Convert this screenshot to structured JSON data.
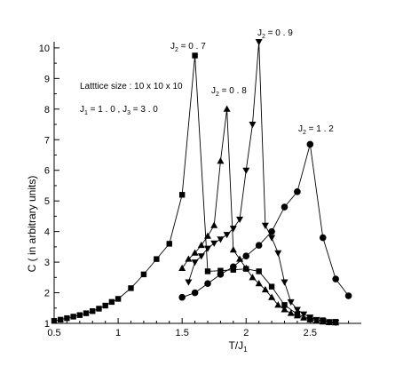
{
  "chart_data": {
    "type": "line",
    "xlabel": "T/J",
    "xlabel_sub": "1",
    "ylabel": "C ( in arbitrary units)",
    "xlim": [
      0.5,
      2.9
    ],
    "ylim": [
      1,
      10.2
    ],
    "xticks": [
      0.5,
      1,
      1.5,
      2,
      2.5
    ],
    "xtick_labels": [
      "0.5",
      "1",
      "1.5",
      "2",
      "2.5"
    ],
    "yticks": [
      1,
      2,
      3,
      4,
      5,
      6,
      7,
      8,
      9,
      10
    ],
    "ytick_labels": [
      "1",
      "2",
      "3",
      "4",
      "5",
      "6",
      "7",
      "8",
      "9",
      "10"
    ],
    "grid": false,
    "annotations": {
      "lattice": "Latttice size : 10 x 10 x 10",
      "couplings": {
        "j1": "J",
        "j1_sub": "1",
        "j1_val": " = 1 . 0 ,  ",
        "j3": "J",
        "j3_sub": "3",
        "j3_val": " = 3 . 0"
      }
    },
    "series": [
      {
        "name_main": "J",
        "name_sub": "2",
        "name_val": " = 0 . 7",
        "marker": "square",
        "x": [
          0.5,
          0.55,
          0.6,
          0.65,
          0.7,
          0.75,
          0.8,
          0.85,
          0.9,
          0.95,
          1.0,
          1.1,
          1.2,
          1.3,
          1.4,
          1.5,
          1.6,
          1.7,
          1.8,
          1.9,
          2.0,
          2.1,
          2.2,
          2.3,
          2.4,
          2.5,
          2.6,
          2.7
        ],
        "y": [
          1.08,
          1.12,
          1.17,
          1.22,
          1.27,
          1.33,
          1.4,
          1.48,
          1.58,
          1.7,
          1.8,
          2.15,
          2.6,
          3.1,
          3.6,
          5.2,
          9.75,
          2.7,
          2.72,
          2.75,
          2.78,
          2.7,
          2.2,
          1.6,
          1.3,
          1.15,
          1.1,
          1.05
        ]
      },
      {
        "name_main": "J",
        "name_sub": "2",
        "name_val": " = 0 . 8",
        "marker": "triangle-up",
        "x": [
          1.5,
          1.55,
          1.6,
          1.65,
          1.7,
          1.75,
          1.8,
          1.85,
          1.9,
          1.95,
          2.0,
          2.05,
          2.1,
          2.15,
          2.2,
          2.25,
          2.3,
          2.35,
          2.4,
          2.45,
          2.5,
          2.55,
          2.6,
          2.65,
          2.7
        ],
        "y": [
          2.8,
          3.1,
          3.3,
          3.55,
          3.85,
          4.2,
          6.3,
          8.0,
          3.4,
          3.1,
          2.8,
          2.5,
          2.3,
          2.1,
          1.85,
          1.6,
          1.45,
          1.33,
          1.25,
          1.18,
          1.12,
          1.08,
          1.05,
          1.03,
          1.02
        ]
      },
      {
        "name_main": "J",
        "name_sub": "2",
        "name_val": " = 0 . 9",
        "marker": "triangle-down",
        "x": [
          1.55,
          1.6,
          1.65,
          1.7,
          1.75,
          1.8,
          1.85,
          1.9,
          1.95,
          2.0,
          2.05,
          2.1,
          2.15,
          2.2,
          2.25,
          2.3,
          2.35,
          2.4,
          2.45,
          2.5,
          2.55,
          2.6,
          2.65,
          2.7
        ],
        "y": [
          2.35,
          3.0,
          3.2,
          3.45,
          3.62,
          3.75,
          3.9,
          4.1,
          4.4,
          6.0,
          7.5,
          10.2,
          4.2,
          3.8,
          3.3,
          2.35,
          1.7,
          1.45,
          1.3,
          1.2,
          1.12,
          1.08,
          1.05,
          1.03
        ]
      },
      {
        "name_main": "J",
        "name_sub": "2",
        "name_val": " = 1 . 2",
        "marker": "circle",
        "x": [
          1.5,
          1.6,
          1.7,
          1.8,
          1.9,
          2.0,
          2.1,
          2.2,
          2.3,
          2.4,
          2.5,
          2.6,
          2.7,
          2.8
        ],
        "y": [
          1.85,
          2.0,
          2.3,
          2.6,
          2.85,
          3.2,
          3.55,
          4.0,
          4.8,
          5.3,
          6.85,
          3.8,
          2.45,
          1.9
        ]
      }
    ]
  }
}
